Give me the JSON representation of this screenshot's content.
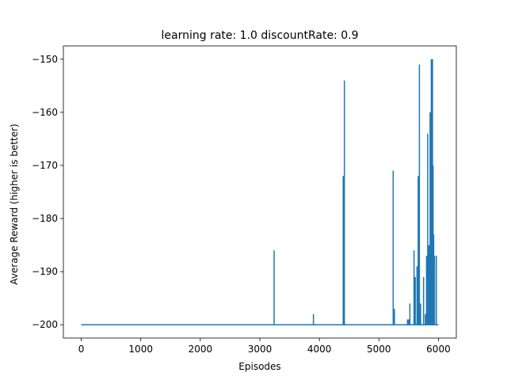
{
  "chart_data": {
    "type": "line",
    "title": "learning rate: 1.0 discountRate: 0.9",
    "xlabel": "Episodes",
    "ylabel": "Average Reward (higher is better)",
    "xlim": [
      -300,
      6300
    ],
    "ylim": [
      -202.5,
      -147.5
    ],
    "xticks": [
      0,
      1000,
      2000,
      3000,
      4000,
      5000,
      6000
    ],
    "yticks": [
      -200,
      -190,
      -180,
      -170,
      -160,
      -150
    ],
    "grid": false,
    "legend": "none",
    "series": [
      {
        "color": "#1f77b4",
        "baseline": -200,
        "x_start": 0,
        "x_end": 6000,
        "spikes": [
          {
            "x": 3240,
            "y": -186
          },
          {
            "x": 3900,
            "y": -198
          },
          {
            "x": 4400,
            "y": -172
          },
          {
            "x": 4420,
            "y": -154
          },
          {
            "x": 5240,
            "y": -171
          },
          {
            "x": 5260,
            "y": -197
          },
          {
            "x": 5480,
            "y": -199
          },
          {
            "x": 5500,
            "y": -199
          },
          {
            "x": 5520,
            "y": -196
          },
          {
            "x": 5560,
            "y": -200
          },
          {
            "x": 5590,
            "y": -186
          },
          {
            "x": 5610,
            "y": -191
          },
          {
            "x": 5640,
            "y": -189
          },
          {
            "x": 5660,
            "y": -172
          },
          {
            "x": 5680,
            "y": -151
          },
          {
            "x": 5700,
            "y": -196
          },
          {
            "x": 5730,
            "y": -200
          },
          {
            "x": 5750,
            "y": -191
          },
          {
            "x": 5780,
            "y": -198
          },
          {
            "x": 5800,
            "y": -187
          },
          {
            "x": 5820,
            "y": -164
          },
          {
            "x": 5840,
            "y": -185
          },
          {
            "x": 5860,
            "y": -160
          },
          {
            "x": 5880,
            "y": -150
          },
          {
            "x": 5900,
            "y": -150
          },
          {
            "x": 5910,
            "y": -170
          },
          {
            "x": 5920,
            "y": -183
          },
          {
            "x": 5935,
            "y": -187
          },
          {
            "x": 5950,
            "y": -200
          },
          {
            "x": 5965,
            "y": -187
          },
          {
            "x": 5980,
            "y": -200
          }
        ]
      }
    ]
  }
}
